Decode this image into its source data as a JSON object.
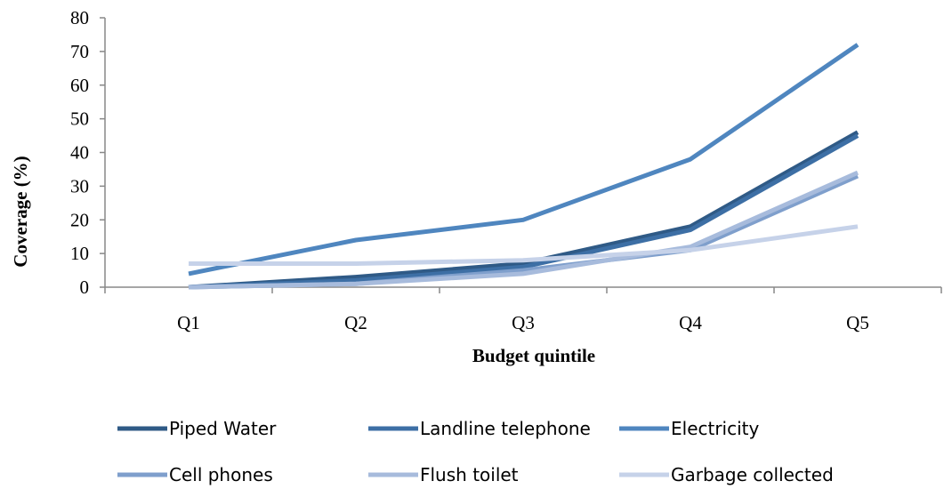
{
  "chart_data": {
    "type": "line",
    "categories": [
      "Q1",
      "Q2",
      "Q3",
      "Q4",
      "Q5"
    ],
    "xlabel": "Budget quintile",
    "ylabel": "Coverage (%)",
    "ylim": [
      0,
      80
    ],
    "yticks": [
      0,
      10,
      20,
      30,
      40,
      50,
      60,
      70,
      80
    ],
    "grid": false,
    "legend_position": "bottom",
    "series": [
      {
        "name": "Piped Water",
        "values": [
          0,
          3,
          7,
          18,
          46
        ],
        "color": "#2f5a86"
      },
      {
        "name": "Landline telephone",
        "values": [
          0,
          2,
          6,
          17,
          45
        ],
        "color": "#3d6fa5"
      },
      {
        "name": "Electricity",
        "values": [
          4,
          14,
          20,
          38,
          72
        ],
        "color": "#4f86bf"
      },
      {
        "name": "Cell phones",
        "values": [
          0,
          1,
          5,
          11,
          33
        ],
        "color": "#7f9fcc"
      },
      {
        "name": "Flush toilet",
        "values": [
          0,
          1,
          4,
          12,
          34
        ],
        "color": "#a7bbdc"
      },
      {
        "name": "Garbage collected",
        "values": [
          7,
          7,
          8,
          11,
          18
        ],
        "color": "#c6d2e9"
      }
    ]
  }
}
